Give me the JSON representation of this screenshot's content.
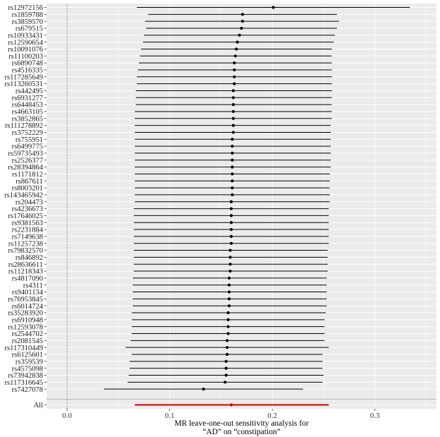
{
  "chart_data": {
    "type": "forest",
    "xlabel_lines": [
      "MR leave-one-out sensitivity analysis for",
      "“AD” on “constipation”"
    ],
    "xlim": [
      -0.02,
      0.36
    ],
    "xticks": [
      {
        "value": 0.0,
        "label": "0.0"
      },
      {
        "value": 0.1,
        "label": "0.1"
      },
      {
        "value": 0.2,
        "label": "0.2"
      },
      {
        "value": 0.3,
        "label": "0.3"
      }
    ],
    "reference_line": 0,
    "grid": true,
    "colors": {
      "panel": "#ebebeb",
      "grid": "#ffffff",
      "point": "#000000",
      "summary": "#cc0000",
      "reference": "#555555"
    },
    "rows": [
      {
        "snp": "rs12972156",
        "beta": 0.201,
        "lo": 0.068,
        "hi": 0.334
      },
      {
        "snp": "rs1859788",
        "beta": 0.171,
        "lo": 0.079,
        "hi": 0.263
      },
      {
        "snp": "rs3859570",
        "beta": 0.171,
        "lo": 0.076,
        "hi": 0.265
      },
      {
        "snp": "rs679515",
        "beta": 0.17,
        "lo": 0.077,
        "hi": 0.263
      },
      {
        "snp": "rs10933431",
        "beta": 0.168,
        "lo": 0.075,
        "hi": 0.261
      },
      {
        "snp": "rs12590654",
        "beta": 0.166,
        "lo": 0.074,
        "hi": 0.26
      },
      {
        "snp": "rs10091076",
        "beta": 0.165,
        "lo": 0.072,
        "hi": 0.258
      },
      {
        "snp": "rs11100203",
        "beta": 0.164,
        "lo": 0.071,
        "hi": 0.258
      },
      {
        "snp": "rs6890748",
        "beta": 0.163,
        "lo": 0.07,
        "hi": 0.258
      },
      {
        "snp": "rs4516335",
        "beta": 0.163,
        "lo": 0.069,
        "hi": 0.258
      },
      {
        "snp": "rs117285649",
        "beta": 0.163,
        "lo": 0.068,
        "hi": 0.258
      },
      {
        "snp": "rs113260531",
        "beta": 0.163,
        "lo": 0.068,
        "hi": 0.258
      },
      {
        "snp": "rs442495",
        "beta": 0.162,
        "lo": 0.067,
        "hi": 0.258
      },
      {
        "snp": "rs6931277",
        "beta": 0.162,
        "lo": 0.067,
        "hi": 0.258
      },
      {
        "snp": "rs6448453",
        "beta": 0.162,
        "lo": 0.067,
        "hi": 0.258
      },
      {
        "snp": "rs4663105",
        "beta": 0.162,
        "lo": 0.066,
        "hi": 0.258
      },
      {
        "snp": "rs3852865",
        "beta": 0.162,
        "lo": 0.066,
        "hi": 0.258
      },
      {
        "snp": "rs111278892",
        "beta": 0.162,
        "lo": 0.066,
        "hi": 0.257
      },
      {
        "snp": "rs3752229",
        "beta": 0.162,
        "lo": 0.066,
        "hi": 0.257
      },
      {
        "snp": "rs755951",
        "beta": 0.161,
        "lo": 0.066,
        "hi": 0.257
      },
      {
        "snp": "rs6499775",
        "beta": 0.161,
        "lo": 0.066,
        "hi": 0.257
      },
      {
        "snp": "rs59735493",
        "beta": 0.161,
        "lo": 0.066,
        "hi": 0.257
      },
      {
        "snp": "rs2526377",
        "beta": 0.161,
        "lo": 0.066,
        "hi": 0.257
      },
      {
        "snp": "rs28394864",
        "beta": 0.161,
        "lo": 0.066,
        "hi": 0.257
      },
      {
        "snp": "rs1171812",
        "beta": 0.161,
        "lo": 0.066,
        "hi": 0.256
      },
      {
        "snp": "rs867611",
        "beta": 0.161,
        "lo": 0.066,
        "hi": 0.256
      },
      {
        "snp": "rs8003201",
        "beta": 0.161,
        "lo": 0.066,
        "hi": 0.256
      },
      {
        "snp": "rs143465942",
        "beta": 0.161,
        "lo": 0.066,
        "hi": 0.256
      },
      {
        "snp": "rs204473",
        "beta": 0.16,
        "lo": 0.066,
        "hi": 0.256
      },
      {
        "snp": "rs4236673",
        "beta": 0.16,
        "lo": 0.065,
        "hi": 0.255
      },
      {
        "snp": "rs17646025",
        "beta": 0.16,
        "lo": 0.065,
        "hi": 0.255
      },
      {
        "snp": "rs9381563",
        "beta": 0.16,
        "lo": 0.065,
        "hi": 0.255
      },
      {
        "snp": "rs2231884",
        "beta": 0.16,
        "lo": 0.065,
        "hi": 0.255
      },
      {
        "snp": "rs7149638",
        "beta": 0.16,
        "lo": 0.065,
        "hi": 0.255
      },
      {
        "snp": "rs11257238",
        "beta": 0.16,
        "lo": 0.065,
        "hi": 0.255
      },
      {
        "snp": "rs79832570",
        "beta": 0.159,
        "lo": 0.065,
        "hi": 0.254
      },
      {
        "snp": "rs846892",
        "beta": 0.159,
        "lo": 0.065,
        "hi": 0.254
      },
      {
        "snp": "rs28636611",
        "beta": 0.159,
        "lo": 0.065,
        "hi": 0.254
      },
      {
        "snp": "rs11218343",
        "beta": 0.159,
        "lo": 0.065,
        "hi": 0.254
      },
      {
        "snp": "rs4817090",
        "beta": 0.158,
        "lo": 0.064,
        "hi": 0.253
      },
      {
        "snp": "rs4311",
        "beta": 0.158,
        "lo": 0.064,
        "hi": 0.253
      },
      {
        "snp": "rs9401134",
        "beta": 0.158,
        "lo": 0.064,
        "hi": 0.253
      },
      {
        "snp": "rs76953845",
        "beta": 0.158,
        "lo": 0.064,
        "hi": 0.253
      },
      {
        "snp": "rs6014724",
        "beta": 0.158,
        "lo": 0.064,
        "hi": 0.253
      },
      {
        "snp": "rs35283920",
        "beta": 0.157,
        "lo": 0.063,
        "hi": 0.252
      },
      {
        "snp": "rs6910948",
        "beta": 0.157,
        "lo": 0.063,
        "hi": 0.251
      },
      {
        "snp": "rs12593078",
        "beta": 0.157,
        "lo": 0.063,
        "hi": 0.251
      },
      {
        "snp": "rs2544702",
        "beta": 0.157,
        "lo": 0.063,
        "hi": 0.251
      },
      {
        "snp": "rs2081545",
        "beta": 0.156,
        "lo": 0.062,
        "hi": 0.251
      },
      {
        "snp": "rs117310449",
        "beta": 0.156,
        "lo": 0.057,
        "hi": 0.255
      },
      {
        "snp": "rs6125601",
        "beta": 0.156,
        "lo": 0.063,
        "hi": 0.249
      },
      {
        "snp": "rs359539",
        "beta": 0.155,
        "lo": 0.061,
        "hi": 0.249
      },
      {
        "snp": "rs4575098",
        "beta": 0.155,
        "lo": 0.061,
        "hi": 0.249
      },
      {
        "snp": "rs73942838",
        "beta": 0.155,
        "lo": 0.06,
        "hi": 0.25
      },
      {
        "snp": "rs117316645",
        "beta": 0.154,
        "lo": 0.059,
        "hi": 0.249
      },
      {
        "snp": "rs7427078",
        "beta": 0.133,
        "lo": 0.036,
        "hi": 0.23
      }
    ],
    "summary": {
      "snp": "All",
      "beta": 0.16,
      "lo": 0.066,
      "hi": 0.255
    }
  }
}
